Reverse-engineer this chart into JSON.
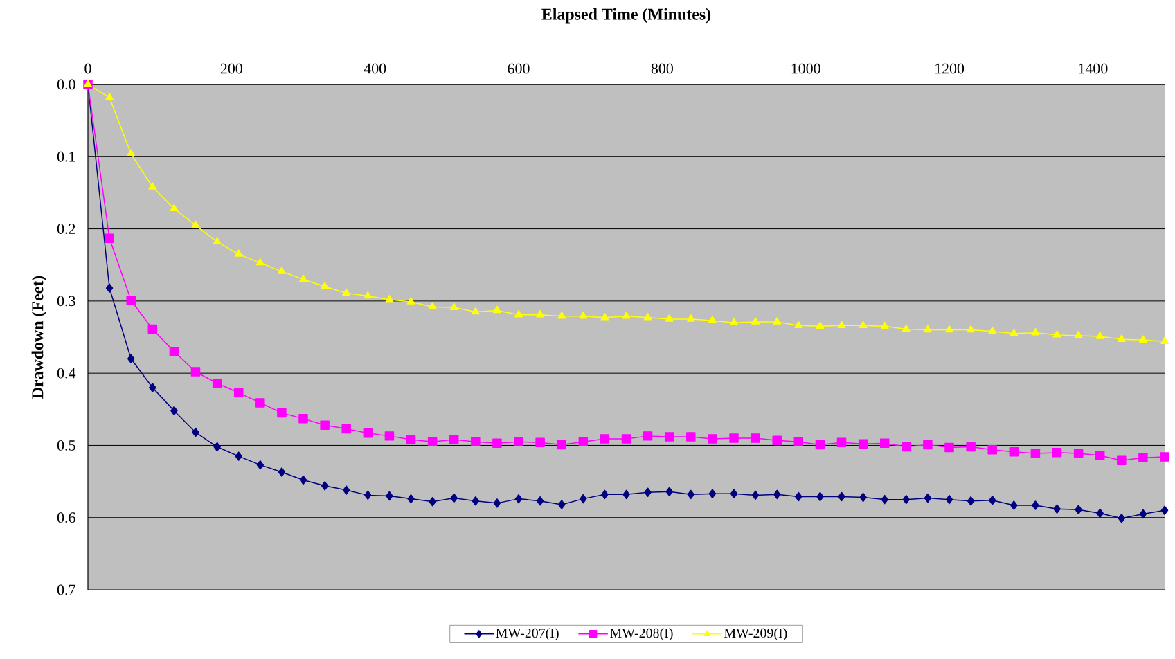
{
  "chart_data": {
    "type": "line",
    "title": "Elapsed Time (Minutes)",
    "ylabel": "Drawdown (Feet)",
    "x": [
      0,
      30,
      60,
      90,
      120,
      150,
      180,
      210,
      240,
      270,
      300,
      330,
      360,
      390,
      420,
      450,
      480,
      510,
      540,
      570,
      600,
      630,
      660,
      690,
      720,
      750,
      780,
      810,
      840,
      870,
      900,
      930,
      960,
      990,
      1020,
      1050,
      1080,
      1110,
      1140,
      1170,
      1200,
      1230,
      1260,
      1290,
      1320,
      1350,
      1380,
      1410,
      1440,
      1470,
      1500
    ],
    "series": [
      {
        "name": "MW-207(I)",
        "color": "#000080",
        "marker": "diamond",
        "values": [
          0,
          0.282,
          0.38,
          0.42,
          0.452,
          0.482,
          0.502,
          0.515,
          0.527,
          0.537,
          0.548,
          0.556,
          0.562,
          0.569,
          0.57,
          0.574,
          0.578,
          0.573,
          0.577,
          0.58,
          0.574,
          0.577,
          0.582,
          0.574,
          0.568,
          0.568,
          0.565,
          0.564,
          0.568,
          0.567,
          0.567,
          0.569,
          0.568,
          0.571,
          0.571,
          0.571,
          0.572,
          0.575,
          0.575,
          0.573,
          0.575,
          0.577,
          0.576,
          0.583,
          0.583,
          0.588,
          0.589,
          0.594,
          0.601,
          0.595,
          0.59
        ]
      },
      {
        "name": "MW-208(I)",
        "color": "#ff00ff",
        "marker": "square",
        "values": [
          0,
          0.213,
          0.299,
          0.339,
          0.37,
          0.398,
          0.414,
          0.427,
          0.441,
          0.455,
          0.463,
          0.472,
          0.477,
          0.483,
          0.487,
          0.492,
          0.495,
          0.492,
          0.495,
          0.497,
          0.495,
          0.496,
          0.499,
          0.495,
          0.491,
          0.491,
          0.487,
          0.488,
          0.488,
          0.491,
          0.49,
          0.49,
          0.493,
          0.495,
          0.499,
          0.496,
          0.498,
          0.497,
          0.502,
          0.499,
          0.503,
          0.502,
          0.506,
          0.509,
          0.511,
          0.51,
          0.511,
          0.514,
          0.521,
          0.517,
          0.516
        ]
      },
      {
        "name": "MW-209(I)",
        "color": "#ffff00",
        "marker": "triangle",
        "values": [
          0,
          0.018,
          0.096,
          0.142,
          0.172,
          0.195,
          0.218,
          0.235,
          0.247,
          0.259,
          0.27,
          0.28,
          0.289,
          0.293,
          0.298,
          0.301,
          0.308,
          0.309,
          0.315,
          0.313,
          0.319,
          0.319,
          0.321,
          0.321,
          0.323,
          0.321,
          0.323,
          0.325,
          0.325,
          0.327,
          0.33,
          0.329,
          0.329,
          0.334,
          0.335,
          0.334,
          0.334,
          0.335,
          0.339,
          0.34,
          0.34,
          0.34,
          0.342,
          0.345,
          0.344,
          0.347,
          0.348,
          0.349,
          0.353,
          0.354,
          0.356
        ]
      }
    ],
    "xlim": [
      0,
      1500
    ],
    "ylim": [
      0.7,
      0
    ],
    "xticks": [
      0,
      200,
      400,
      600,
      800,
      1000,
      1200,
      1400
    ],
    "yticks": [
      {
        "value": 0,
        "label": "0.0"
      },
      {
        "value": 0.1,
        "label": "0.1"
      },
      {
        "value": 0.2,
        "label": "0.2"
      },
      {
        "value": 0.3,
        "label": "0.3"
      },
      {
        "value": 0.4,
        "label": "0.4"
      },
      {
        "value": 0.5,
        "label": "0.5"
      },
      {
        "value": 0.6,
        "label": "0.6"
      },
      {
        "value": 0.7,
        "label": "0.7"
      }
    ],
    "grid": "y",
    "legend": "bottom"
  }
}
